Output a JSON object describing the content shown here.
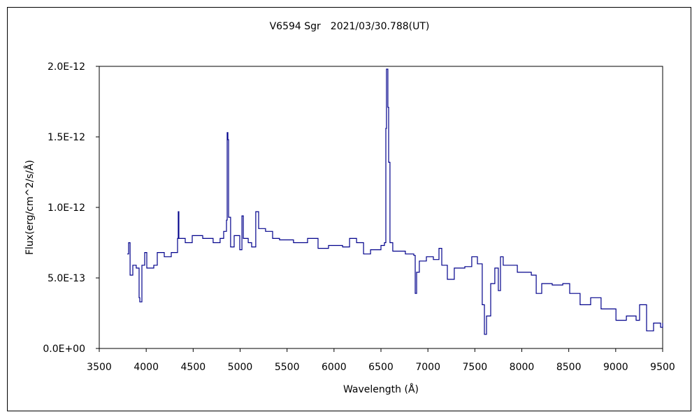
{
  "chart_data": {
    "type": "line",
    "title": "V6594 Sgr　2021/03/30.788(UT)",
    "xlabel": "Wavelength (Å)",
    "ylabel": "Flux(erg/cm^2/s/Å)",
    "xlim": [
      3500,
      9500
    ],
    "ylim": [
      0,
      2e-12
    ],
    "grid": false,
    "legend": "none",
    "x_ticks": [
      3500,
      4000,
      4500,
      5000,
      5500,
      6000,
      6500,
      7000,
      7500,
      8000,
      8500,
      9000,
      9500
    ],
    "x_tick_labels": [
      "3500",
      "4000",
      "4500",
      "5000",
      "5500",
      "6000",
      "6500",
      "7000",
      "7500",
      "8000",
      "8500",
      "9000",
      "9500"
    ],
    "y_ticks": [
      0,
      5e-13,
      1e-12,
      1.5e-12,
      2e-12
    ],
    "y_tick_labels": [
      "0.0E+00",
      "5.0E-13",
      "1.0E-12",
      "1.5E-12",
      "2.0E-12"
    ],
    "line_color": "#00008B",
    "series": [
      {
        "name": "V6594 Sgr",
        "unit_scale": 1e-13,
        "x": [
          3798,
          3813,
          3828,
          3857,
          3894,
          3924,
          3932,
          3954,
          3984,
          4006,
          4081,
          4118,
          4192,
          4267,
          4334,
          4341,
          4348,
          4416,
          4490,
          4602,
          4713,
          4787,
          4825,
          4855,
          4862,
          4870,
          4877,
          4899,
          4937,
          4996,
          5019,
          5034,
          5086,
          5123,
          5167,
          5197,
          5271,
          5346,
          5420,
          5569,
          5718,
          5830,
          5942,
          6091,
          6166,
          6240,
          6315,
          6389,
          6500,
          6537,
          6552,
          6559,
          6574,
          6582,
          6596,
          6626,
          6760,
          6850,
          6865,
          6880,
          6909,
          6984,
          7058,
          7118,
          7148,
          7207,
          7281,
          7393,
          7467,
          7527,
          7579,
          7602,
          7624,
          7669,
          7713,
          7750,
          7773,
          7802,
          7952,
          8101,
          8153,
          8212,
          8324,
          8436,
          8510,
          8621,
          8733,
          8844,
          9003,
          9114,
          9217,
          9254,
          9329,
          9403,
          9478,
          9500
        ],
        "y": [
          6.7,
          7.5,
          5.2,
          5.9,
          5.7,
          3.6,
          3.3,
          5.9,
          6.8,
          5.7,
          5.9,
          6.8,
          6.5,
          6.8,
          7.8,
          9.7,
          7.8,
          7.5,
          8.0,
          7.8,
          7.5,
          7.8,
          8.3,
          9.1,
          15.3,
          14.8,
          9.3,
          7.2,
          8.0,
          7.0,
          9.4,
          7.8,
          7.5,
          7.2,
          9.7,
          8.5,
          8.3,
          7.8,
          7.7,
          7.5,
          7.8,
          7.1,
          7.3,
          7.2,
          7.8,
          7.5,
          6.7,
          7.0,
          7.3,
          7.5,
          15.6,
          19.8,
          17.1,
          13.2,
          7.5,
          6.9,
          6.7,
          6.6,
          3.9,
          5.4,
          6.2,
          6.5,
          6.3,
          7.1,
          5.9,
          4.9,
          5.7,
          5.8,
          6.5,
          6.0,
          3.1,
          1.0,
          2.3,
          4.6,
          5.7,
          4.1,
          6.5,
          5.9,
          5.4,
          5.2,
          3.9,
          4.6,
          4.5,
          4.6,
          3.9,
          3.1,
          3.6,
          2.8,
          2.0,
          2.3,
          2.0,
          3.1,
          1.25,
          1.8,
          1.5,
          1.8
        ]
      }
    ]
  }
}
